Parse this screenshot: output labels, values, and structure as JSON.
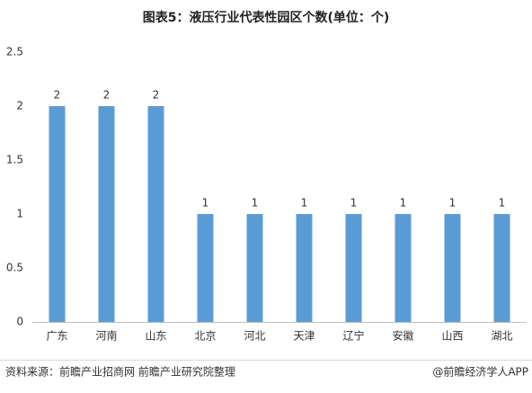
{
  "chart_data": {
    "type": "bar",
    "title": "图表5：液压行业代表性园区个数(单位：个)",
    "categories": [
      "广东",
      "河南",
      "山东",
      "北京",
      "河北",
      "天津",
      "辽宁",
      "安徽",
      "山西",
      "湖北"
    ],
    "values": [
      2,
      2,
      2,
      1,
      1,
      1,
      1,
      1,
      1,
      1
    ],
    "color": "#5b9bd5",
    "ylim": [
      0,
      2.5
    ],
    "yticks": [
      0,
      0.5,
      1,
      1.5,
      2,
      2.5
    ],
    "grid": false,
    "source": "资料来源：前瞻产业招商网 前瞻产业研究院整理",
    "credit": "@前瞻经济学人APP"
  }
}
